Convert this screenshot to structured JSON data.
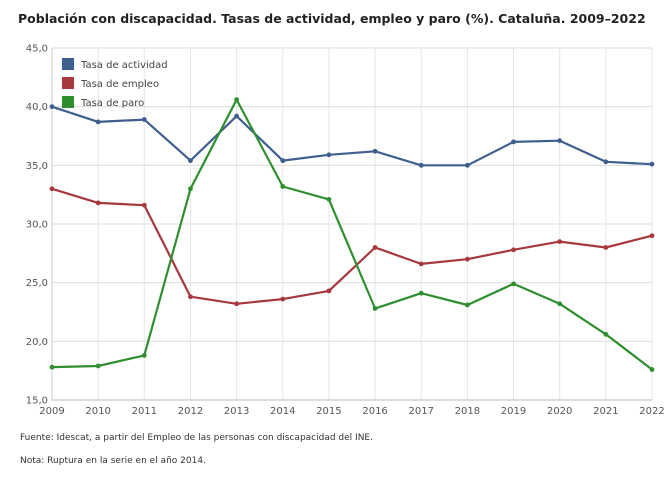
{
  "chart_data": {
    "type": "line",
    "title": "Población con discapacidad. Tasas de actividad, empleo y paro (%). Cataluña. 2009–2022",
    "x": [
      "2009",
      "2010",
      "2011",
      "2012",
      "2013",
      "2014",
      "2015",
      "2016",
      "2017",
      "2018",
      "2019",
      "2020",
      "2021",
      "2022"
    ],
    "ylim": [
      15,
      45
    ],
    "yticks": [
      "15,0",
      "20,0",
      "25,0",
      "30,0",
      "35,0",
      "40,0",
      "45,0"
    ],
    "grid": true,
    "legend_position": "top-left",
    "series": [
      {
        "name": "Tasa de actividad",
        "color": "#3f5f8f",
        "values": [
          40.0,
          38.7,
          38.9,
          35.4,
          39.2,
          35.4,
          35.9,
          36.2,
          35.0,
          35.0,
          37.0,
          37.1,
          35.3,
          35.1
        ]
      },
      {
        "name": "Tasa de empleo",
        "color": "#a7383c",
        "values": [
          33.0,
          31.8,
          31.6,
          23.8,
          23.2,
          23.6,
          24.3,
          28.0,
          26.6,
          27.0,
          27.8,
          28.5,
          28.0,
          29.0
        ]
      },
      {
        "name": "Tasa de paro",
        "color": "#2f8f2f",
        "values": [
          17.8,
          17.9,
          18.8,
          33.0,
          40.6,
          33.2,
          32.1,
          22.8,
          24.1,
          23.1,
          24.9,
          23.2,
          20.6,
          17.6
        ]
      }
    ]
  },
  "notes": {
    "source": "Fuente: Idescat, a partir del Empleo de las personas con discapacidad del INE.",
    "note": "Nota: Ruptura en la serie en el año 2014."
  }
}
